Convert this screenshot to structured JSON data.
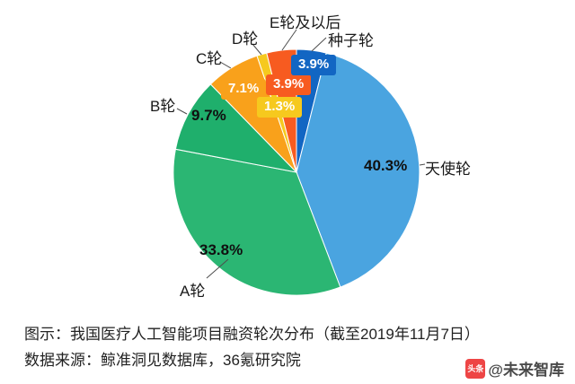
{
  "chart_data": {
    "type": "pie",
    "title": "图示：我国医疗人工智能项目融资轮次分布（截至2019年11月7日）",
    "source": "数据来源：鲸准洞见数据库，36氪研究院",
    "unit": "%",
    "legend_position": "labels-around-pie",
    "slices": [
      {
        "key": "seed",
        "label": "种子轮",
        "value": 3.9,
        "pct_label": "3.9%",
        "color": "#1266C3"
      },
      {
        "key": "angel",
        "label": "天使轮",
        "value": 40.3,
        "pct_label": "40.3%",
        "color": "#4AA4E0"
      },
      {
        "key": "a",
        "label": "A轮",
        "value": 33.8,
        "pct_label": "33.8%",
        "color": "#2BB673"
      },
      {
        "key": "b",
        "label": "B轮",
        "value": 9.7,
        "pct_label": "9.7%",
        "color": "#1FAF6C"
      },
      {
        "key": "c",
        "label": "C轮",
        "value": 7.1,
        "pct_label": "7.1%",
        "color": "#F9A11B"
      },
      {
        "key": "d",
        "label": "D轮",
        "value": 1.3,
        "pct_label": "1.3%",
        "color": "#F6C91E"
      },
      {
        "key": "e",
        "label": "E轮及以后",
        "value": 3.9,
        "pct_label": "3.9%",
        "color": "#F75B20"
      }
    ]
  },
  "watermark": {
    "icon_text": "头条",
    "icon_color": "#EE4545",
    "handle": "@未来智库"
  }
}
